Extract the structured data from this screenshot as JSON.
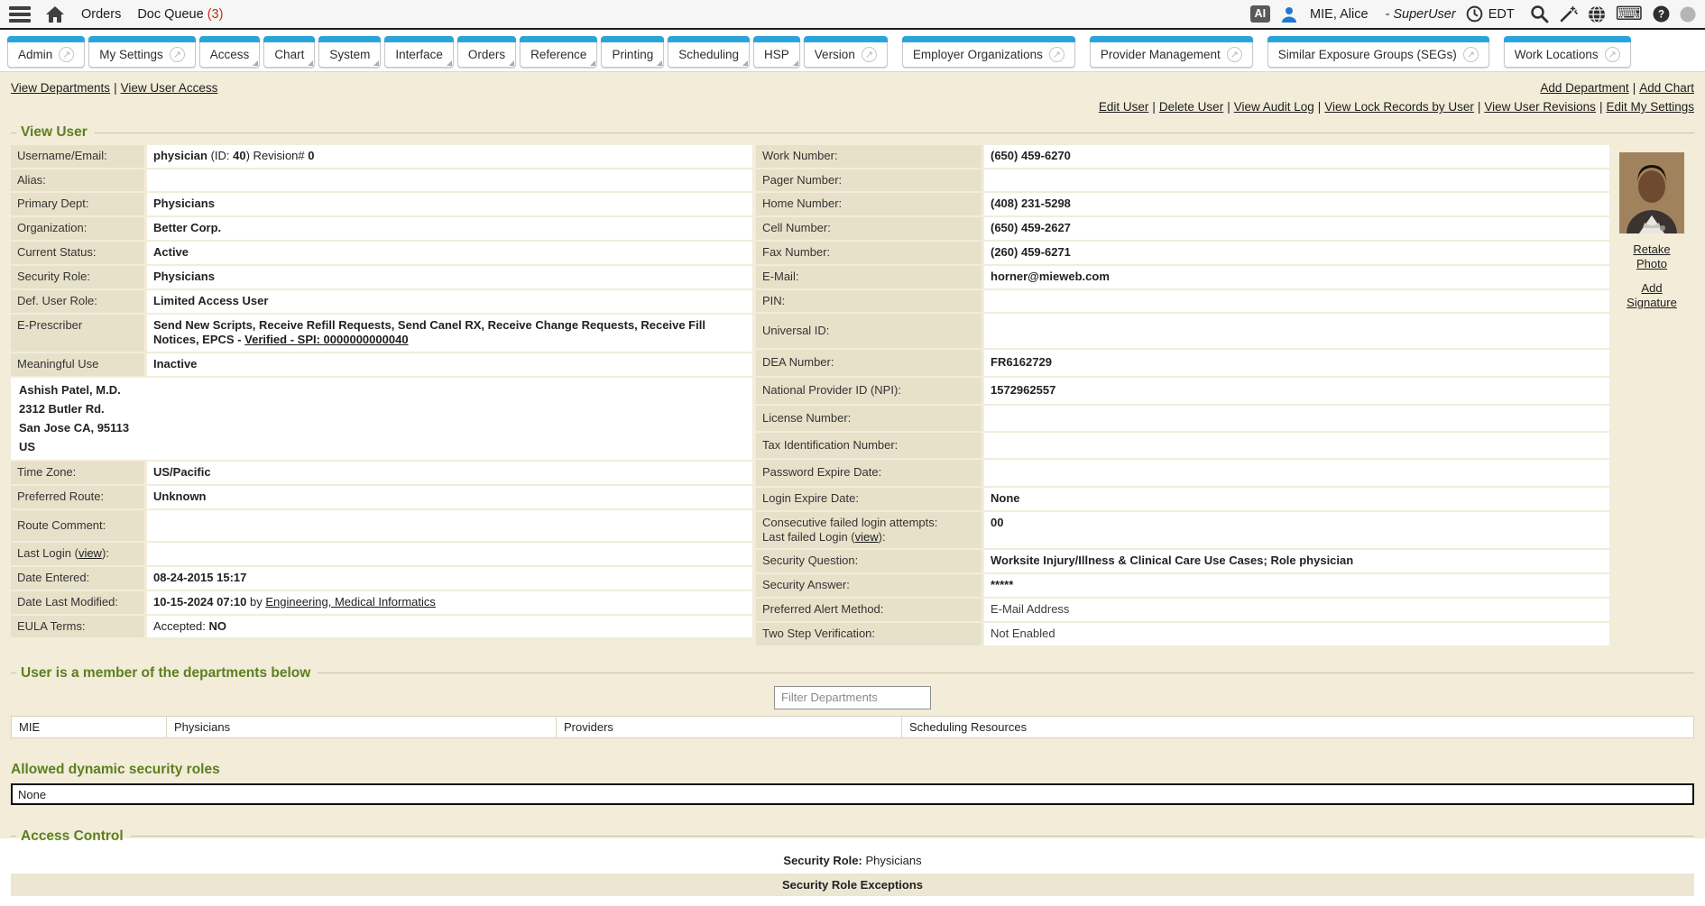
{
  "topbar": {
    "ai_badge": "AI",
    "menu_orders": "Orders",
    "menu_doc_queue": "Doc Queue",
    "doc_queue_count": "(3)",
    "user_name": "MIE, Alice",
    "user_role": "- SuperUser",
    "timezone": "EDT"
  },
  "tabs": [
    {
      "label": "Admin",
      "popout": true
    },
    {
      "label": "My Settings",
      "popout": true
    },
    {
      "label": "Access"
    },
    {
      "label": "Chart"
    },
    {
      "label": "System"
    },
    {
      "label": "Interface"
    },
    {
      "label": "Orders"
    },
    {
      "label": "Reference"
    },
    {
      "label": "Printing"
    },
    {
      "label": "Scheduling"
    },
    {
      "label": "HSP"
    },
    {
      "label": "Version",
      "popout": true
    },
    {
      "label": "Employer Organizations",
      "popout": true,
      "gap": true
    },
    {
      "label": "Provider Management",
      "popout": true,
      "gap": true
    },
    {
      "label": "Similar Exposure Groups (SEGs)",
      "popout": true,
      "gap": true
    },
    {
      "label": "Work Locations",
      "popout": true,
      "gap": true
    }
  ],
  "links": {
    "top_left": [
      "View Departments",
      "View User Access"
    ],
    "top_right": [
      "Add Department",
      "Add Chart"
    ],
    "actions": [
      "Edit User",
      "Delete User",
      "View Audit Log",
      "View Lock Records by User",
      "View User Revisions",
      "Edit My Settings"
    ]
  },
  "view_user": {
    "title": "View User",
    "left_rows": [
      {
        "label": "Username/Email:",
        "value": [
          {
            "t": "physician",
            "b": true
          },
          {
            "t": " (ID: "
          },
          {
            "t": "40",
            "b": true
          },
          {
            "t": ") Revision# "
          },
          {
            "t": "0",
            "b": true
          }
        ]
      },
      {
        "label": "Alias:",
        "value": []
      },
      {
        "label": "Primary Dept:",
        "value": [
          {
            "t": "Physicians",
            "b": true
          }
        ]
      },
      {
        "label": "Organization:",
        "value": [
          {
            "t": "Better Corp.",
            "b": true
          }
        ]
      },
      {
        "label": "Current Status:",
        "value": [
          {
            "t": "Active",
            "b": true
          }
        ]
      },
      {
        "label": "Security Role:",
        "value": [
          {
            "t": "Physicians",
            "b": true
          }
        ]
      },
      {
        "label": "Def. User Role:",
        "value": [
          {
            "t": "Limited Access User",
            "b": true
          }
        ]
      },
      {
        "label": "E-Prescriber",
        "value": [
          {
            "t": "Send New Scripts, Receive Refill Requests, Send Canel RX, Receive Change Requests, Receive Fill Notices, EPCS - ",
            "b": true
          },
          {
            "t": "Verified - SPI: 0000000000040",
            "b": true,
            "u": true
          }
        ]
      },
      {
        "label": "Meaningful Use",
        "value": [
          {
            "t": "Inactive",
            "b": true
          }
        ]
      },
      {
        "block": [
          "Ashish Patel, M.D.",
          "2312 Butler Rd.",
          "San Jose CA, 95113",
          "US"
        ]
      },
      {
        "label": "Time Zone:",
        "value": [
          {
            "t": "US/Pacific",
            "b": true
          }
        ]
      },
      {
        "label": "Preferred Route:",
        "value": [
          {
            "t": "Unknown",
            "b": true
          }
        ]
      },
      {
        "label": "Route Comment:",
        "value": [],
        "cls": "tall"
      },
      {
        "label": [
          {
            "t": "Last Login ("
          },
          {
            "t": "view",
            "u": true
          },
          {
            "t": "):"
          }
        ],
        "value": []
      },
      {
        "label": "Date Entered:",
        "value": [
          {
            "t": "08-24-2015 15:17",
            "b": true
          }
        ]
      },
      {
        "label": "Date Last Modified:",
        "value": [
          {
            "t": "10-15-2024 07:10",
            "b": true
          },
          {
            "t": " by "
          },
          {
            "t": "Engineering, Medical Informatics",
            "u": true
          }
        ]
      },
      {
        "label": "EULA Terms:",
        "value": [
          {
            "t": "Accepted: "
          },
          {
            "t": "NO",
            "b": true
          }
        ]
      }
    ],
    "right_rows": [
      {
        "label": "Work Number:",
        "value": [
          {
            "t": "(650) 459-6270",
            "b": true
          }
        ]
      },
      {
        "label": "Pager Number:",
        "value": []
      },
      {
        "label": "Home Number:",
        "value": [
          {
            "t": "(408) 231-5298",
            "b": true
          }
        ]
      },
      {
        "label": "Cell Number:",
        "value": [
          {
            "t": "(650) 459-2627",
            "b": true
          }
        ]
      },
      {
        "label": "Fax Number:",
        "value": [
          {
            "t": "(260) 459-6271",
            "b": true
          }
        ]
      },
      {
        "label": "E-Mail:",
        "value": [
          {
            "t": "horner@mieweb.com",
            "b": true
          }
        ]
      },
      {
        "label": "PIN:",
        "value": []
      },
      {
        "label": "Universal ID:",
        "value": [],
        "cls": "tall2"
      },
      {
        "label": "DEA Number:",
        "value": [
          {
            "t": "FR6162729",
            "b": true
          }
        ],
        "cls": "mid"
      },
      {
        "label": "National Provider ID (NPI):",
        "value": [
          {
            "t": "1572962557",
            "b": true
          }
        ],
        "cls": "mid"
      },
      {
        "label": "License Number:",
        "value": [],
        "cls": "mid"
      },
      {
        "label": "Tax Identification Number:",
        "value": [],
        "cls": "mid"
      },
      {
        "label": "Password Expire Date:",
        "value": [],
        "cls": "mid"
      },
      {
        "label": "Login Expire Date:",
        "value": [
          {
            "t": "None",
            "b": true
          }
        ]
      },
      {
        "label": [
          {
            "t": "Consecutive failed login attempts:"
          },
          {
            "brk": true
          },
          {
            "t": "Last failed Login ("
          },
          {
            "t": "view",
            "u": true
          },
          {
            "t": "):"
          }
        ],
        "value": [
          {
            "t": "00",
            "b": true
          }
        ]
      },
      {
        "label": "Security Question:",
        "value": [
          {
            "t": "Worksite Injury/Illness & Clinical Care Use Cases; Role physician",
            "b": true
          }
        ]
      },
      {
        "label": "Security Answer:",
        "value": [
          {
            "t": "*****",
            "b": true
          }
        ]
      },
      {
        "label": "Preferred Alert Method:",
        "value": [
          {
            "t": "E-Mail Address",
            "dim": true
          }
        ]
      },
      {
        "label": "Two Step Verification:",
        "value": [
          {
            "t": "Not Enabled",
            "dim": true
          }
        ]
      }
    ],
    "photo_links": [
      "Retake Photo",
      "Add Signature"
    ]
  },
  "departments": {
    "title": "User is a member of the departments below",
    "filter_placeholder": "Filter Departments",
    "items": [
      "MIE",
      "Physicians",
      "Providers",
      "Scheduling Resources"
    ]
  },
  "dynamic_roles": {
    "title": "Allowed dynamic security roles",
    "value": "None"
  },
  "access_control": {
    "title": "Access Control",
    "security_role_label": "Security Role:",
    "security_role_value": "Physicians",
    "exceptions_title": "Security Role Exceptions"
  },
  "colors": {
    "tab_accent": "#2aa4da",
    "heading_green": "#5d7f1f",
    "count_red": "#c43018",
    "page_beige": "#f2ecd9"
  }
}
